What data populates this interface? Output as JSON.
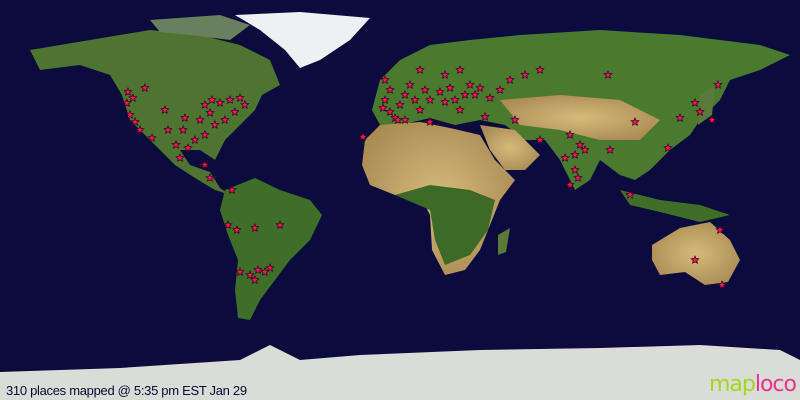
{
  "map": {
    "projection": "equirectangular",
    "colors": {
      "ocean": "#0b0b3d",
      "land": "#4f7a2e",
      "desert": "#c9a86a",
      "ice": "#e8ecef",
      "marker": "#ff1464",
      "marker_outline": "#400018"
    },
    "marker_icon": "star-marker-icon",
    "markers": [
      [
        48.6,
        122.4
      ],
      [
        45.9,
        120.2
      ],
      [
        43.6,
        122.9
      ],
      [
        38.3,
        121.5
      ],
      [
        35.1,
        119.2
      ],
      [
        50.4,
        114.8
      ],
      [
        31.5,
        117
      ],
      [
        27.9,
        111.6
      ],
      [
        40.5,
        105.8
      ],
      [
        31.5,
        104.4
      ],
      [
        36.9,
        96.8
      ],
      [
        31.5,
        97.6
      ],
      [
        24.8,
        100.8
      ],
      [
        18.9,
        99
      ],
      [
        42.8,
        87.8
      ],
      [
        45,
        84.6
      ],
      [
        43.7,
        81
      ],
      [
        45,
        76.5
      ],
      [
        45.9,
        72
      ],
      [
        42.8,
        69.8
      ],
      [
        39.6,
        74.3
      ],
      [
        36,
        78.8
      ],
      [
        33.8,
        83.3
      ],
      [
        29.3,
        87.8
      ],
      [
        27,
        92.3
      ],
      [
        23.4,
        95.4
      ],
      [
        39.2,
        85.5
      ],
      [
        36,
        90
      ],
      [
        15.8,
        87.8
      ],
      [
        9.9,
        85.5
      ],
      [
        4.5,
        75.6
      ],
      [
        -11.3,
        77.4
      ],
      [
        -13.5,
        73.4
      ],
      [
        -12.6,
        65.3
      ],
      [
        -11.3,
        54
      ],
      [
        -32.4,
        72
      ],
      [
        -33.8,
        67.5
      ],
      [
        -31.5,
        63.9
      ],
      [
        -32.4,
        60.8
      ],
      [
        -30.6,
        58.5
      ],
      [
        -36,
        65.3
      ]
    ],
    "markers_east": [
      [
        54,
        -6.75
      ],
      [
        49.5,
        -4.5
      ],
      [
        45,
        -6.75
      ],
      [
        41.4,
        -7.65
      ],
      [
        39.6,
        -4.5
      ],
      [
        36.9,
        -2.25
      ],
      [
        42.8,
        0
      ],
      [
        47.3,
        2.25
      ],
      [
        51.8,
        4.5
      ],
      [
        45,
        6.75
      ],
      [
        40.5,
        9
      ],
      [
        49.5,
        11.25
      ],
      [
        45,
        13.5
      ],
      [
        48.6,
        18
      ],
      [
        44.1,
        20.25
      ],
      [
        50.4,
        22.5
      ],
      [
        45,
        24.75
      ],
      [
        40.5,
        27
      ],
      [
        47.3,
        29.25
      ],
      [
        51.8,
        31.5
      ],
      [
        47.3,
        33.75
      ],
      [
        50.4,
        36
      ],
      [
        45.9,
        40.5
      ],
      [
        49.5,
        45
      ],
      [
        54,
        49.5
      ],
      [
        56.3,
        56.25
      ],
      [
        58.5,
        63
      ],
      [
        58.5,
        27
      ],
      [
        56.3,
        20.25
      ],
      [
        58.5,
        9
      ],
      [
        36,
        -0.9
      ],
      [
        36,
        2.25
      ],
      [
        28.4,
        -16.65
      ],
      [
        37.4,
        38.25
      ],
      [
        36,
        51.75
      ],
      [
        35.1,
        13.5
      ],
      [
        56.3,
        93.6
      ],
      [
        35.1,
        105.75
      ],
      [
        29.3,
        76.5
      ],
      [
        18.9,
        74.25
      ],
      [
        20.3,
        78.75
      ],
      [
        24.8,
        81
      ],
      [
        22.5,
        83.25
      ],
      [
        13.5,
        78.75
      ],
      [
        9.9,
        80.1
      ],
      [
        6.8,
        76.5
      ],
      [
        22.5,
        94.5
      ],
      [
        2.3,
        103.5
      ],
      [
        23.4,
        120.6
      ],
      [
        36.9,
        126
      ],
      [
        43.7,
        132.75
      ],
      [
        39.6,
        135
      ],
      [
        36,
        140.4
      ],
      [
        51.8,
        143.1
      ],
      [
        27,
        63
      ],
      [
        -27,
        132.75
      ],
      [
        -13.5,
        144
      ],
      [
        -38.3,
        144.9
      ]
    ]
  },
  "footer": {
    "caption": "310 places mapped @ 5:35 pm EST Jan 29",
    "logo_part1": "map",
    "logo_part2": "loco"
  }
}
